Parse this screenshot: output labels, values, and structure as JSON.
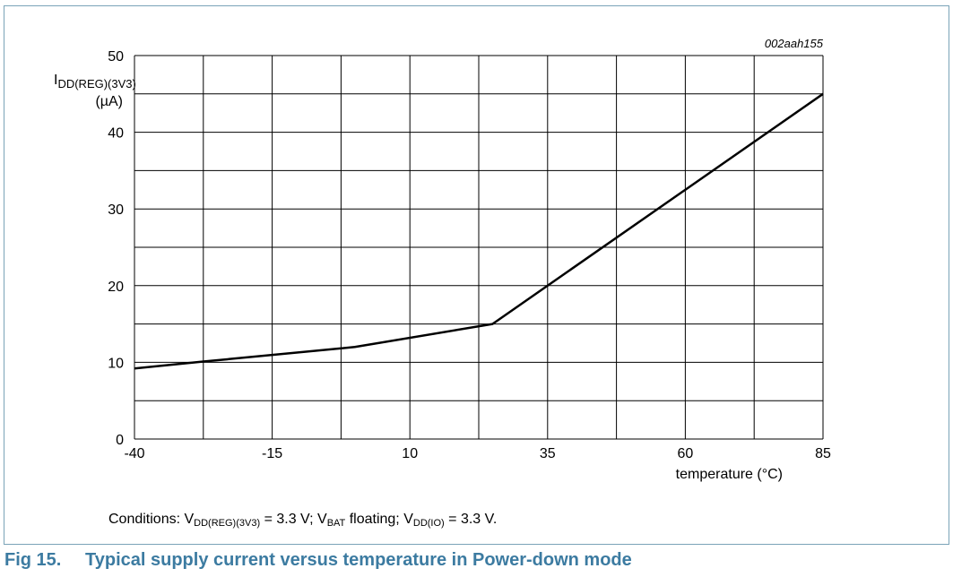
{
  "figure_id": "002aah155",
  "conditions": {
    "prefix": "Conditions: V",
    "sub1": "DD(REG)(3V3)",
    "part1": " = 3.3 V; V",
    "sub2": "BAT",
    "part2": " floating; V",
    "sub3": "DD(IO)",
    "part3": " = 3.3 V."
  },
  "caption": {
    "number": "Fig 15.",
    "title": "Typical supply current versus temperature in Power-down mode"
  },
  "chart_data": {
    "type": "line",
    "ylabel_main": "I",
    "ylabel_sub": "DD(REG)(3V3)",
    "ylabel_unit": "(µA)",
    "xlabel": "temperature (°C)",
    "xlim": [
      -40,
      85
    ],
    "ylim": [
      0,
      50
    ],
    "xticks": [
      -40,
      -15,
      10,
      35,
      60,
      85
    ],
    "xtick_labels": [
      "-40",
      "-15",
      "10",
      "35",
      "60",
      "85"
    ],
    "yticks": [
      0,
      10,
      20,
      30,
      40,
      50
    ],
    "ytick_labels": [
      "0",
      "10",
      "20",
      "30",
      "40",
      "50"
    ],
    "x_grid_step": 12.5,
    "y_grid_step": 5,
    "grid": true,
    "series": [
      {
        "x": [
          -40,
          -27.5,
          0,
          25,
          85
        ],
        "y": [
          9.2,
          10.1,
          12,
          15,
          45
        ]
      }
    ],
    "colors": {
      "line": "#000000",
      "grid": "#000000",
      "frame": "#7aa3b8",
      "caption": "#3c7ba1"
    }
  }
}
